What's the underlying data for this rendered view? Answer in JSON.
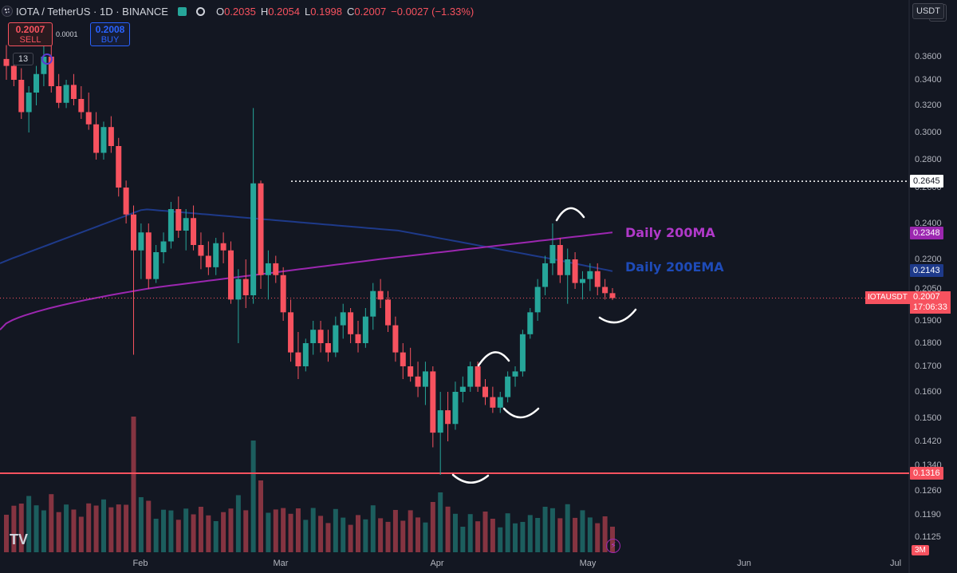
{
  "header": {
    "symbol": "IOTA / TetherUS · 1D · BINANCE",
    "open_label": "O",
    "open": "0.2035",
    "high_label": "H",
    "high": "0.2054",
    "low_label": "L",
    "low": "0.1998",
    "close_label": "C",
    "close": "0.2007",
    "change": "−0.0027 (−1.33%)"
  },
  "trade": {
    "sell_price": "0.2007",
    "sell_label": "SELL",
    "spread": "0.0001",
    "buy_price": "0.2008",
    "buy_label": "BUY"
  },
  "indicators": {
    "count": "13"
  },
  "currency": "USDT",
  "price_axis": [
    "0.3600",
    "0.3400",
    "0.3200",
    "0.3000",
    "0.2800",
    "0.2600",
    "0.2400",
    "0.2200",
    "0.2050",
    "0.1900",
    "0.1800",
    "0.1700",
    "0.1600",
    "0.1500",
    "0.1420",
    "0.1340",
    "0.1260",
    "0.1190",
    "0.1125"
  ],
  "price_tags": {
    "level_high": "0.2645",
    "ma200": "0.2348",
    "ema200": "0.2143",
    "last": "0.2007",
    "countdown": "17:06:33",
    "support": "0.1316"
  },
  "symbol_tag": "IOTAUSDT",
  "timeframe": "3M",
  "date_axis": [
    "Feb",
    "Mar",
    "Apr",
    "May",
    "Jun",
    "Jul"
  ],
  "annotations": {
    "ma_label": "Daily 200MA",
    "ema_label": "Daily 200EMA"
  },
  "branding": "TV",
  "colors": {
    "up": "#26a69a",
    "down": "#f7525f",
    "ma": "#9c27b0",
    "ema": "#1e3a8a",
    "bg": "#131722"
  },
  "chart_data": {
    "type": "candlestick",
    "title": "IOTA / TetherUS · 1D · BINANCE",
    "ylim": [
      0.112,
      0.37
    ],
    "series": [
      {
        "x": 0,
        "o": 0.358,
        "h": 0.37,
        "l": 0.34,
        "c": 0.352
      },
      {
        "x": 1,
        "o": 0.352,
        "h": 0.362,
        "l": 0.335,
        "c": 0.34
      },
      {
        "x": 2,
        "o": 0.34,
        "h": 0.35,
        "l": 0.31,
        "c": 0.315
      },
      {
        "x": 3,
        "o": 0.315,
        "h": 0.335,
        "l": 0.3,
        "c": 0.33
      },
      {
        "x": 4,
        "o": 0.33,
        "h": 0.352,
        "l": 0.32,
        "c": 0.345
      },
      {
        "x": 5,
        "o": 0.345,
        "h": 0.37,
        "l": 0.335,
        "c": 0.36
      },
      {
        "x": 6,
        "o": 0.36,
        "h": 0.372,
        "l": 0.33,
        "c": 0.335
      },
      {
        "x": 7,
        "o": 0.335,
        "h": 0.345,
        "l": 0.318,
        "c": 0.322
      },
      {
        "x": 8,
        "o": 0.322,
        "h": 0.34,
        "l": 0.318,
        "c": 0.336
      },
      {
        "x": 9,
        "o": 0.336,
        "h": 0.345,
        "l": 0.32,
        "c": 0.325
      },
      {
        "x": 10,
        "o": 0.325,
        "h": 0.335,
        "l": 0.31,
        "c": 0.315
      },
      {
        "x": 11,
        "o": 0.315,
        "h": 0.33,
        "l": 0.302,
        "c": 0.306
      },
      {
        "x": 12,
        "o": 0.306,
        "h": 0.315,
        "l": 0.28,
        "c": 0.285
      },
      {
        "x": 13,
        "o": 0.285,
        "h": 0.308,
        "l": 0.28,
        "c": 0.304
      },
      {
        "x": 14,
        "o": 0.304,
        "h": 0.312,
        "l": 0.285,
        "c": 0.29
      },
      {
        "x": 15,
        "o": 0.29,
        "h": 0.296,
        "l": 0.255,
        "c": 0.26
      },
      {
        "x": 16,
        "o": 0.26,
        "h": 0.265,
        "l": 0.24,
        "c": 0.245
      },
      {
        "x": 17,
        "o": 0.245,
        "h": 0.25,
        "l": 0.175,
        "c": 0.225
      },
      {
        "x": 18,
        "o": 0.225,
        "h": 0.24,
        "l": 0.21,
        "c": 0.235
      },
      {
        "x": 19,
        "o": 0.235,
        "h": 0.24,
        "l": 0.205,
        "c": 0.21
      },
      {
        "x": 20,
        "o": 0.21,
        "h": 0.228,
        "l": 0.208,
        "c": 0.224
      },
      {
        "x": 21,
        "o": 0.224,
        "h": 0.235,
        "l": 0.218,
        "c": 0.23
      },
      {
        "x": 22,
        "o": 0.23,
        "h": 0.252,
        "l": 0.226,
        "c": 0.248
      },
      {
        "x": 23,
        "o": 0.248,
        "h": 0.255,
        "l": 0.232,
        "c": 0.236
      },
      {
        "x": 24,
        "o": 0.236,
        "h": 0.248,
        "l": 0.225,
        "c": 0.243
      },
      {
        "x": 25,
        "o": 0.243,
        "h": 0.25,
        "l": 0.225,
        "c": 0.228
      },
      {
        "x": 26,
        "o": 0.228,
        "h": 0.235,
        "l": 0.215,
        "c": 0.222
      },
      {
        "x": 27,
        "o": 0.222,
        "h": 0.23,
        "l": 0.212,
        "c": 0.216
      },
      {
        "x": 28,
        "o": 0.216,
        "h": 0.232,
        "l": 0.212,
        "c": 0.229
      },
      {
        "x": 29,
        "o": 0.229,
        "h": 0.235,
        "l": 0.218,
        "c": 0.225
      },
      {
        "x": 30,
        "o": 0.225,
        "h": 0.23,
        "l": 0.198,
        "c": 0.2
      },
      {
        "x": 31,
        "o": 0.2,
        "h": 0.215,
        "l": 0.18,
        "c": 0.21
      },
      {
        "x": 32,
        "o": 0.21,
        "h": 0.22,
        "l": 0.196,
        "c": 0.202
      },
      {
        "x": 33,
        "o": 0.202,
        "h": 0.318,
        "l": 0.198,
        "c": 0.263
      },
      {
        "x": 34,
        "o": 0.263,
        "h": 0.265,
        "l": 0.205,
        "c": 0.212
      },
      {
        "x": 35,
        "o": 0.212,
        "h": 0.225,
        "l": 0.2,
        "c": 0.218
      },
      {
        "x": 36,
        "o": 0.218,
        "h": 0.222,
        "l": 0.208,
        "c": 0.212
      },
      {
        "x": 37,
        "o": 0.212,
        "h": 0.216,
        "l": 0.19,
        "c": 0.194
      },
      {
        "x": 38,
        "o": 0.194,
        "h": 0.2,
        "l": 0.172,
        "c": 0.176
      },
      {
        "x": 39,
        "o": 0.176,
        "h": 0.185,
        "l": 0.165,
        "c": 0.17
      },
      {
        "x": 40,
        "o": 0.17,
        "h": 0.182,
        "l": 0.168,
        "c": 0.18
      },
      {
        "x": 41,
        "o": 0.18,
        "h": 0.19,
        "l": 0.175,
        "c": 0.186
      },
      {
        "x": 42,
        "o": 0.186,
        "h": 0.19,
        "l": 0.176,
        "c": 0.18
      },
      {
        "x": 43,
        "o": 0.18,
        "h": 0.186,
        "l": 0.172,
        "c": 0.176
      },
      {
        "x": 44,
        "o": 0.176,
        "h": 0.192,
        "l": 0.174,
        "c": 0.188
      },
      {
        "x": 45,
        "o": 0.188,
        "h": 0.198,
        "l": 0.182,
        "c": 0.194
      },
      {
        "x": 46,
        "o": 0.194,
        "h": 0.196,
        "l": 0.18,
        "c": 0.184
      },
      {
        "x": 47,
        "o": 0.184,
        "h": 0.19,
        "l": 0.176,
        "c": 0.18
      },
      {
        "x": 48,
        "o": 0.18,
        "h": 0.196,
        "l": 0.178,
        "c": 0.192
      },
      {
        "x": 49,
        "o": 0.192,
        "h": 0.208,
        "l": 0.186,
        "c": 0.204
      },
      {
        "x": 50,
        "o": 0.204,
        "h": 0.21,
        "l": 0.196,
        "c": 0.2
      },
      {
        "x": 51,
        "o": 0.2,
        "h": 0.204,
        "l": 0.185,
        "c": 0.188
      },
      {
        "x": 52,
        "o": 0.188,
        "h": 0.192,
        "l": 0.172,
        "c": 0.176
      },
      {
        "x": 53,
        "o": 0.176,
        "h": 0.18,
        "l": 0.165,
        "c": 0.17
      },
      {
        "x": 54,
        "o": 0.17,
        "h": 0.178,
        "l": 0.164,
        "c": 0.166
      },
      {
        "x": 55,
        "o": 0.166,
        "h": 0.172,
        "l": 0.158,
        "c": 0.162
      },
      {
        "x": 56,
        "o": 0.162,
        "h": 0.172,
        "l": 0.155,
        "c": 0.168
      },
      {
        "x": 57,
        "o": 0.168,
        "h": 0.17,
        "l": 0.14,
        "c": 0.145
      },
      {
        "x": 58,
        "o": 0.145,
        "h": 0.16,
        "l": 0.131,
        "c": 0.153
      },
      {
        "x": 59,
        "o": 0.153,
        "h": 0.16,
        "l": 0.142,
        "c": 0.148
      },
      {
        "x": 60,
        "o": 0.148,
        "h": 0.164,
        "l": 0.146,
        "c": 0.16
      },
      {
        "x": 61,
        "o": 0.16,
        "h": 0.166,
        "l": 0.156,
        "c": 0.162
      },
      {
        "x": 62,
        "o": 0.162,
        "h": 0.172,
        "l": 0.16,
        "c": 0.17
      },
      {
        "x": 63,
        "o": 0.17,
        "h": 0.172,
        "l": 0.16,
        "c": 0.162
      },
      {
        "x": 64,
        "o": 0.162,
        "h": 0.165,
        "l": 0.155,
        "c": 0.158
      },
      {
        "x": 65,
        "o": 0.158,
        "h": 0.162,
        "l": 0.152,
        "c": 0.154
      },
      {
        "x": 66,
        "o": 0.154,
        "h": 0.16,
        "l": 0.152,
        "c": 0.158
      },
      {
        "x": 67,
        "o": 0.158,
        "h": 0.168,
        "l": 0.156,
        "c": 0.166
      },
      {
        "x": 68,
        "o": 0.166,
        "h": 0.17,
        "l": 0.162,
        "c": 0.168
      },
      {
        "x": 69,
        "o": 0.168,
        "h": 0.186,
        "l": 0.166,
        "c": 0.184
      },
      {
        "x": 70,
        "o": 0.184,
        "h": 0.196,
        "l": 0.182,
        "c": 0.194
      },
      {
        "x": 71,
        "o": 0.194,
        "h": 0.21,
        "l": 0.19,
        "c": 0.206
      },
      {
        "x": 72,
        "o": 0.206,
        "h": 0.222,
        "l": 0.202,
        "c": 0.218
      },
      {
        "x": 73,
        "o": 0.218,
        "h": 0.24,
        "l": 0.212,
        "c": 0.228
      },
      {
        "x": 74,
        "o": 0.228,
        "h": 0.232,
        "l": 0.208,
        "c": 0.212
      },
      {
        "x": 75,
        "o": 0.212,
        "h": 0.226,
        "l": 0.198,
        "c": 0.22
      },
      {
        "x": 76,
        "o": 0.22,
        "h": 0.224,
        "l": 0.205,
        "c": 0.208
      },
      {
        "x": 77,
        "o": 0.208,
        "h": 0.214,
        "l": 0.2,
        "c": 0.21
      },
      {
        "x": 78,
        "o": 0.21,
        "h": 0.218,
        "l": 0.204,
        "c": 0.214
      },
      {
        "x": 79,
        "o": 0.214,
        "h": 0.218,
        "l": 0.202,
        "c": 0.206
      },
      {
        "x": 80,
        "o": 0.206,
        "h": 0.21,
        "l": 0.2,
        "c": 0.203
      },
      {
        "x": 81,
        "o": 0.203,
        "h": 0.2054,
        "l": 0.1998,
        "c": 0.2007
      }
    ],
    "ma200": {
      "name": "Daily 200MA"
    },
    "ema200": {
      "name": "Daily 200EMA"
    },
    "levels": [
      0.2645,
      0.1316
    ]
  }
}
